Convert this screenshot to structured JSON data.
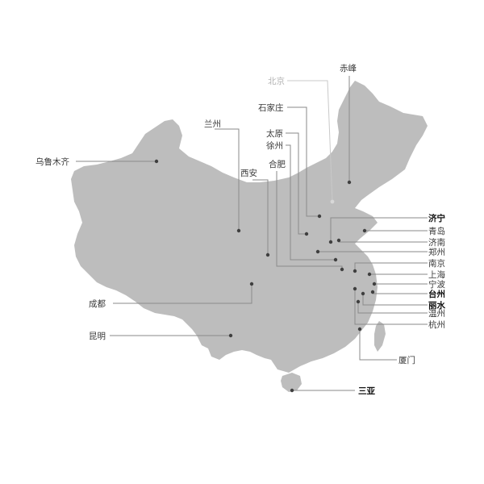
{
  "map": {
    "cities": {
      "urumqi": {
        "label": "乌鲁木齐"
      },
      "lanzhou": {
        "label": "兰州"
      },
      "xian": {
        "label": "西安"
      },
      "chengdu": {
        "label": "成都"
      },
      "kunming": {
        "label": "昆明"
      },
      "beijing": {
        "label": "北京"
      },
      "chifeng": {
        "label": "赤峰"
      },
      "shijiazhuang": {
        "label": "石家庄"
      },
      "taiyuan": {
        "label": "太原"
      },
      "xuzhou": {
        "label": "徐州"
      },
      "hefei": {
        "label": "合肥"
      },
      "jining": {
        "label": "济宁"
      },
      "qingdao": {
        "label": "青岛"
      },
      "jinan": {
        "label": "济南"
      },
      "zhengzhou": {
        "label": "郑州"
      },
      "nanjing": {
        "label": "南京"
      },
      "shanghai": {
        "label": "上海"
      },
      "ningbo": {
        "label": "宁波"
      },
      "taizhou": {
        "label": "台州"
      },
      "lishui": {
        "label": "丽水"
      },
      "wenzhou": {
        "label": "温州"
      },
      "hangzhou": {
        "label": "杭州"
      },
      "xiamen": {
        "label": "厦门"
      },
      "sanya": {
        "label": "三亚"
      }
    }
  }
}
